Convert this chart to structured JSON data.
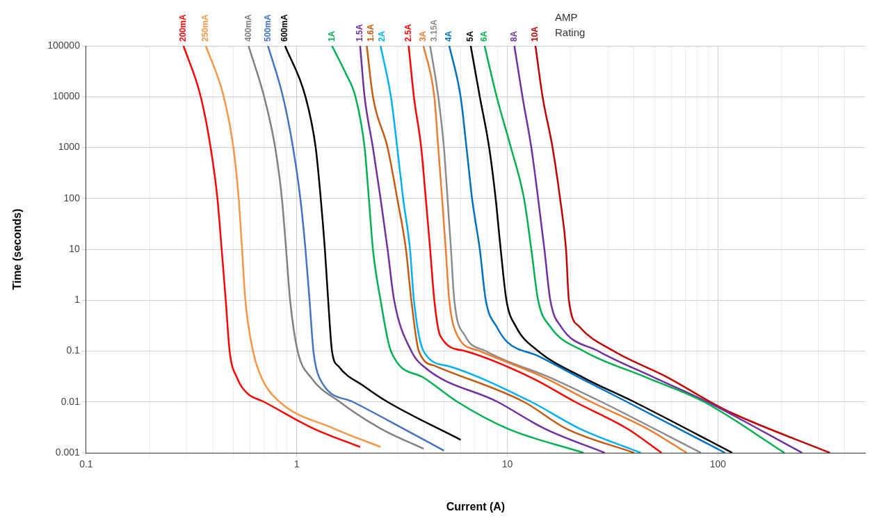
{
  "chart_data": {
    "type": "line",
    "xlabel": "Current (A)",
    "ylabel": "Time (seconds)",
    "legend_title": "AMP Rating",
    "log": "xy",
    "grid": true,
    "legend": false,
    "marker": "none",
    "line_style": "solid",
    "xlim": [
      0.1,
      500
    ],
    "ylim": [
      0.001,
      100000
    ],
    "xticks": [
      0.1,
      {
        "value": 0.2,
        "label": null
      },
      {
        "value": 0.3,
        "label": null
      },
      {
        "value": 0.4,
        "label": null
      },
      {
        "value": 0.5,
        "label": null
      },
      {
        "value": 0.6,
        "label": null
      },
      {
        "value": 0.7,
        "label": null
      },
      {
        "value": 0.8,
        "label": null
      },
      {
        "value": 0.9,
        "label": null
      },
      1,
      {
        "value": 2,
        "label": null
      },
      {
        "value": 3,
        "label": null
      },
      {
        "value": 4,
        "label": null
      },
      {
        "value": 5,
        "label": null
      },
      {
        "value": 6,
        "label": null
      },
      {
        "value": 7,
        "label": null
      },
      {
        "value": 8,
        "label": null
      },
      {
        "value": 9,
        "label": null
      },
      10,
      {
        "value": 20,
        "label": null
      },
      {
        "value": 30,
        "label": null
      },
      {
        "value": 40,
        "label": null
      },
      {
        "value": 50,
        "label": null
      },
      {
        "value": 60,
        "label": null
      },
      {
        "value": 70,
        "label": null
      },
      {
        "value": 80,
        "label": null
      },
      {
        "value": 90,
        "label": null
      },
      100,
      {
        "value": 200,
        "label": null
      },
      {
        "value": 300,
        "label": null
      },
      {
        "value": 400,
        "label": null
      }
    ],
    "yticks": [
      0.001,
      0.01,
      0.1,
      1,
      10,
      100,
      1000,
      10000,
      100000
    ],
    "series": [
      {
        "name": "200mA",
        "color": "#ff0000",
        "x": [
          0.29,
          0.35,
          0.39,
          0.42,
          0.44,
          0.46,
          0.48,
          0.52,
          0.58,
          0.7,
          1.2,
          2.0
        ],
        "values": [
          100000,
          10000,
          1000,
          100,
          10,
          1,
          0.1,
          0.03,
          0.015,
          0.01,
          0.003,
          0.0013
        ]
      },
      {
        "name": "250mA",
        "color": "#f79646",
        "x": [
          0.37,
          0.45,
          0.5,
          0.53,
          0.55,
          0.57,
          0.62,
          0.68,
          0.83,
          1.5,
          2.5
        ],
        "values": [
          100000,
          10000,
          1000,
          100,
          10,
          1,
          0.1,
          0.03,
          0.01,
          0.003,
          0.0013
        ]
      },
      {
        "name": "400mA",
        "color": "#808080",
        "x": [
          0.59,
          0.7,
          0.79,
          0.85,
          0.89,
          0.93,
          1.01,
          1.17,
          1.6,
          2.5,
          4.0
        ],
        "values": [
          100000,
          10000,
          1000,
          100,
          10,
          1,
          0.1,
          0.03,
          0.01,
          0.003,
          0.0012
        ]
      },
      {
        "name": "500mA",
        "color": "#4472c4",
        "x": [
          0.73,
          0.86,
          0.96,
          1.04,
          1.1,
          1.15,
          1.2,
          1.28,
          1.85,
          3.2,
          5.0
        ],
        "values": [
          100000,
          10000,
          1000,
          100,
          10,
          1,
          0.1,
          0.03,
          0.01,
          0.003,
          0.0011
        ]
      },
      {
        "name": "600mA",
        "color": "#000000",
        "x": [
          0.88,
          1.1,
          1.23,
          1.3,
          1.36,
          1.41,
          1.47,
          1.58,
          2.1,
          2.7,
          6.0
        ],
        "values": [
          100000,
          10000,
          1000,
          100,
          10,
          1,
          0.1,
          0.05,
          0.02,
          0.01,
          0.0018
        ]
      },
      {
        "name": "1A",
        "color": "#00b050",
        "x": [
          1.47,
          1.7,
          1.9,
          2.1,
          2.2,
          2.3,
          2.5,
          2.8,
          4.0,
          5.8,
          10,
          23
        ],
        "values": [
          100000,
          30000,
          10000,
          1000,
          100,
          10,
          1,
          0.1,
          0.03,
          0.01,
          0.003,
          0.001
        ]
      },
      {
        "name": "1.5A",
        "color": "#7030a0",
        "x": [
          2.0,
          2.1,
          2.3,
          2.5,
          2.7,
          2.9,
          3.5,
          4.0,
          9,
          15,
          29
        ],
        "values": [
          100000,
          10000,
          1000,
          100,
          10,
          1,
          0.1,
          0.05,
          0.01,
          0.003,
          0.001
        ]
      },
      {
        "name": "1.6A",
        "color": "#c55a11",
        "x": [
          2.15,
          2.3,
          2.7,
          3.0,
          3.3,
          3.5,
          3.8,
          4.6,
          12,
          19,
          40
        ],
        "values": [
          100000,
          10000,
          1000,
          100,
          10,
          1,
          0.1,
          0.05,
          0.01,
          0.003,
          0.001
        ]
      },
      {
        "name": "2A",
        "color": "#00b0f0",
        "x": [
          2.5,
          2.8,
          3.0,
          3.2,
          3.45,
          3.6,
          4.0,
          5.3,
          13,
          22,
          43
        ],
        "values": [
          100000,
          10000,
          1000,
          100,
          10,
          1,
          0.1,
          0.05,
          0.01,
          0.003,
          0.001
        ]
      },
      {
        "name": "2.5A",
        "color": "#ff0000",
        "x": [
          3.4,
          3.6,
          3.9,
          4.1,
          4.3,
          4.5,
          4.8,
          6.3,
          13,
          21,
          37,
          54
        ],
        "values": [
          100000,
          10000,
          1000,
          100,
          10,
          1,
          0.2,
          0.1,
          0.03,
          0.01,
          0.003,
          0.001
        ]
      },
      {
        "name": "3A",
        "color": "#ed7d31",
        "x": [
          4.0,
          4.5,
          4.7,
          4.9,
          5.1,
          5.3,
          5.8,
          7.4,
          15,
          25,
          46,
          71
        ],
        "values": [
          100000,
          10000,
          1000,
          100,
          10,
          1,
          0.2,
          0.1,
          0.03,
          0.01,
          0.003,
          0.001
        ]
      },
      {
        "name": "3.15A",
        "color": "#8c8c8c",
        "x": [
          4.3,
          4.7,
          5.0,
          5.2,
          5.4,
          5.6,
          6.3,
          7.9,
          16,
          28,
          83
        ],
        "values": [
          100000,
          10000,
          1000,
          100,
          10,
          1,
          0.2,
          0.1,
          0.03,
          0.01,
          0.001
        ]
      },
      {
        "name": "4A",
        "color": "#0070c0",
        "x": [
          5.3,
          6.0,
          6.4,
          6.8,
          7.4,
          7.9,
          8.9,
          10,
          14,
          22,
          37,
          108
        ],
        "values": [
          100000,
          10000,
          1000,
          100,
          10,
          1,
          0.3,
          0.15,
          0.08,
          0.03,
          0.01,
          0.001
        ]
      },
      {
        "name": "5A",
        "color": "#000000",
        "x": [
          6.7,
          7.4,
          8.2,
          8.8,
          9.3,
          9.9,
          11,
          14,
          23,
          40,
          117
        ],
        "values": [
          100000,
          10000,
          1000,
          100,
          10,
          1,
          0.3,
          0.1,
          0.03,
          0.01,
          0.001
        ]
      },
      {
        "name": "6A",
        "color": "#00b050",
        "x": [
          7.8,
          8.9,
          10.4,
          12,
          13,
          14,
          16,
          23,
          46,
          86,
          207
        ],
        "values": [
          100000,
          10000,
          1000,
          100,
          10,
          1,
          0.3,
          0.1,
          0.03,
          0.01,
          0.001
        ]
      },
      {
        "name": "8A",
        "color": "#7030a0",
        "x": [
          10.8,
          11.8,
          13,
          14,
          15,
          16,
          18,
          27,
          50,
          89,
          251
        ],
        "values": [
          100000,
          10000,
          1000,
          100,
          10,
          1,
          0.3,
          0.1,
          0.03,
          0.01,
          0.001
        ]
      },
      {
        "name": "10A",
        "color": "#c00000",
        "x": [
          13.6,
          14.7,
          16.4,
          17.8,
          19,
          19.6,
          22,
          32,
          58,
          92,
          117,
          340
        ],
        "values": [
          100000,
          10000,
          1000,
          100,
          10,
          1,
          0.3,
          0.1,
          0.03,
          0.01,
          0.006,
          0.001
        ]
      }
    ]
  }
}
